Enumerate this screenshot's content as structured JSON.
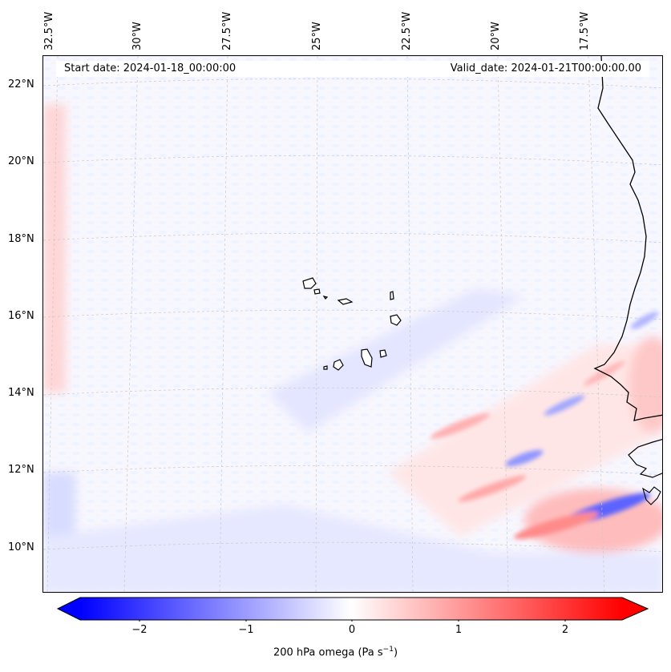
{
  "map": {
    "start_date": "Start date: 2024-01-18_00:00:00",
    "valid_date": "Valid_date: 2024-01-21T00:00:00.00"
  },
  "longitude_labels": [
    "32.5°W",
    "30°W",
    "27.5°W",
    "25°W",
    "22.5°W",
    "20°W",
    "17.5°W"
  ],
  "latitude_labels": [
    "22°N",
    "20°N",
    "18°N",
    "16°N",
    "14°N",
    "12°N",
    "10°N"
  ],
  "colorbar": {
    "ticks": [
      "−2",
      "−1",
      "0",
      "1",
      "2"
    ],
    "label_main": "200 hPa omega (Pa s",
    "label_exp": "−1",
    "label_end": ")",
    "range": [
      -2.6,
      2.6
    ],
    "colors": {
      "neg": "#0000ff",
      "zero": "#ffffff",
      "pos": "#ff0000"
    }
  },
  "chart_data": {
    "type": "heatmap",
    "title": "200 hPa omega",
    "units": "Pa s-1",
    "extent": {
      "lon": [
        -33.0,
        -15.0
      ],
      "lat": [
        8.9,
        22.8
      ]
    },
    "note": "Contoured field; mostly near 0 over open ocean, stronger alternating bands near West African coast around 10-14°N, 15-19°W"
  }
}
